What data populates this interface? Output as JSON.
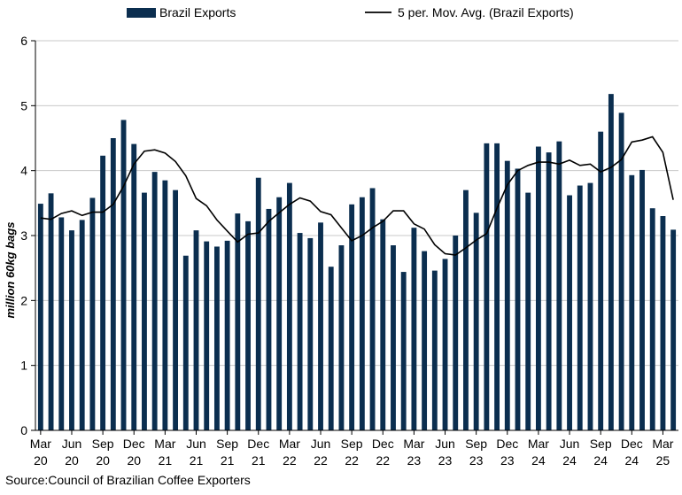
{
  "chart_data": {
    "type": "bar",
    "ylabel": "million 60kg bags",
    "ylim": [
      0,
      6
    ],
    "yticks": [
      0,
      1,
      2,
      3,
      4,
      5,
      6
    ],
    "grid": true,
    "legend_position": "top",
    "categories": [
      "Mar 20",
      "Apr 20",
      "May 20",
      "Jun 20",
      "Jul 20",
      "Aug 20",
      "Sep 20",
      "Oct 20",
      "Nov 20",
      "Dec 20",
      "Jan 21",
      "Feb 21",
      "Mar 21",
      "Apr 21",
      "May 21",
      "Jun 21",
      "Jul 21",
      "Aug 21",
      "Sep 21",
      "Oct 21",
      "Nov 21",
      "Dec 21",
      "Jan 22",
      "Feb 22",
      "Mar 22",
      "Apr 22",
      "May 22",
      "Jun 22",
      "Jul 22",
      "Aug 22",
      "Sep 22",
      "Oct 22",
      "Nov 22",
      "Dec 22",
      "Jan 23",
      "Feb 23",
      "Mar 23",
      "Apr 23",
      "May 23",
      "Jun 23",
      "Jul 23",
      "Aug 23",
      "Sep 23",
      "Oct 23",
      "Nov 23",
      "Dec 23",
      "Jan 24",
      "Feb 24",
      "Mar 24",
      "Apr 24",
      "May 24",
      "Jun 24",
      "Jul 24",
      "Aug 24",
      "Sep 24",
      "Oct 24",
      "Nov 24",
      "Dec 24",
      "Jan 25",
      "Feb 25",
      "Mar 25",
      "Apr 25"
    ],
    "x_tick_labels": [
      {
        "month": "Mar",
        "year": "20",
        "index": 0
      },
      {
        "month": "Jun",
        "year": "20",
        "index": 3
      },
      {
        "month": "Sep",
        "year": "20",
        "index": 6
      },
      {
        "month": "Dec",
        "year": "20",
        "index": 9
      },
      {
        "month": "Mar",
        "year": "21",
        "index": 12
      },
      {
        "month": "Jun",
        "year": "21",
        "index": 15
      },
      {
        "month": "Sep",
        "year": "21",
        "index": 18
      },
      {
        "month": "Dec",
        "year": "21",
        "index": 21
      },
      {
        "month": "Mar",
        "year": "22",
        "index": 24
      },
      {
        "month": "Jun",
        "year": "22",
        "index": 27
      },
      {
        "month": "Sep",
        "year": "22",
        "index": 30
      },
      {
        "month": "Dec",
        "year": "22",
        "index": 33
      },
      {
        "month": "Mar",
        "year": "23",
        "index": 36
      },
      {
        "month": "Jun",
        "year": "23",
        "index": 39
      },
      {
        "month": "Sep",
        "year": "23",
        "index": 42
      },
      {
        "month": "Dec",
        "year": "23",
        "index": 45
      },
      {
        "month": "Mar",
        "year": "24",
        "index": 48
      },
      {
        "month": "Jun",
        "year": "24",
        "index": 51
      },
      {
        "month": "Sep",
        "year": "24",
        "index": 54
      },
      {
        "month": "Dec",
        "year": "24",
        "index": 57
      },
      {
        "month": "Mar",
        "year": "25",
        "index": 60
      }
    ],
    "series": [
      {
        "name": "Brazil Exports",
        "kind": "bar",
        "color": "#0b2e4f",
        "values": [
          3.49,
          3.65,
          3.28,
          3.08,
          3.24,
          3.58,
          4.23,
          4.5,
          4.78,
          4.41,
          3.66,
          3.98,
          3.85,
          3.7,
          2.69,
          3.08,
          2.91,
          2.83,
          2.92,
          3.34,
          3.22,
          3.89,
          3.41,
          3.59,
          3.81,
          3.04,
          2.96,
          3.2,
          2.52,
          2.85,
          3.48,
          3.59,
          3.73,
          3.25,
          2.85,
          2.44,
          3.12,
          2.76,
          2.46,
          2.64,
          3.0,
          3.7,
          3.35,
          4.42,
          4.42,
          4.15,
          4.03,
          3.66,
          4.37,
          4.28,
          4.45,
          3.62,
          3.77,
          3.81,
          4.6,
          5.18,
          4.89,
          3.93,
          4.01,
          3.42,
          3.3,
          3.09
        ]
      },
      {
        "name": "5 per. Mov. Avg. (Brazil Exports)",
        "kind": "line",
        "color": "#000000",
        "values": [
          3.27,
          3.25,
          3.34,
          3.38,
          3.31,
          3.36,
          3.36,
          3.48,
          3.76,
          4.1,
          4.3,
          4.32,
          4.27,
          4.14,
          3.92,
          3.57,
          3.46,
          3.24,
          3.07,
          2.9,
          3.02,
          3.04,
          3.22,
          3.35,
          3.48,
          3.58,
          3.53,
          3.37,
          3.32,
          3.12,
          2.92,
          3.0,
          3.12,
          3.22,
          3.38,
          3.38,
          3.18,
          3.1,
          2.86,
          2.72,
          2.7,
          2.81,
          2.93,
          3.03,
          3.42,
          3.78,
          4.0,
          4.08,
          4.13,
          4.13,
          4.1,
          4.16,
          4.08,
          4.1,
          3.98,
          4.05,
          4.17,
          4.44,
          4.47,
          4.52,
          4.28,
          3.55
        ]
      }
    ]
  },
  "source": "Source:Council of Brazilian Coffee Exporters"
}
